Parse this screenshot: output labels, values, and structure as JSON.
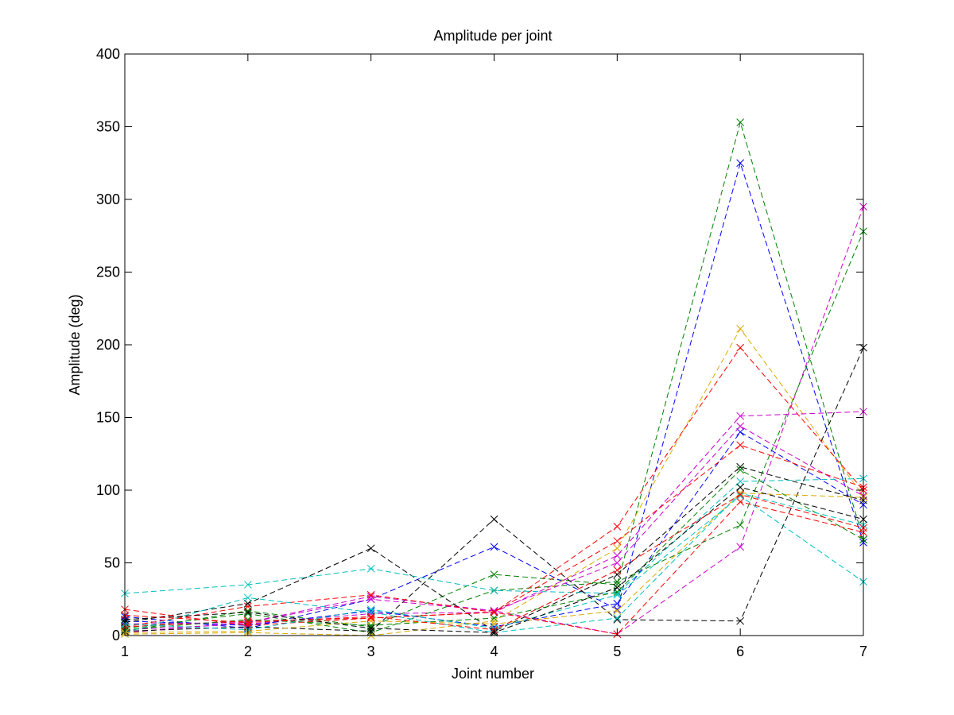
{
  "chart_data": {
    "type": "line",
    "title": "Amplitude per joint",
    "xlabel": "Joint number",
    "ylabel": "Amplitude (deg)",
    "x": [
      1,
      2,
      3,
      4,
      5,
      6,
      7
    ],
    "xlim": [
      1,
      7
    ],
    "ylim": [
      0,
      400
    ],
    "xticks": [
      "1",
      "2",
      "3",
      "4",
      "5",
      "6",
      "7"
    ],
    "yticks": [
      "0",
      "50",
      "100",
      "150",
      "200",
      "250",
      "300",
      "350",
      "400"
    ],
    "grid": false,
    "legend": "none",
    "line_style": "dashed",
    "marker": "x",
    "series": [
      {
        "color": "#008000",
        "values": [
          3,
          17,
          6,
          42,
          35,
          353,
          66
        ]
      },
      {
        "color": "#0000ff",
        "values": [
          13,
          5,
          25,
          61,
          18,
          325,
          64
        ]
      },
      {
        "color": "#cc00cc",
        "values": [
          2,
          9,
          25,
          17,
          1,
          61,
          295
        ]
      },
      {
        "color": "#008000",
        "values": [
          5,
          15,
          2,
          31,
          37,
          76,
          278
        ]
      },
      {
        "color": "#ddaa00",
        "values": [
          1,
          2,
          0,
          10,
          60,
          211,
          96
        ]
      },
      {
        "color": "#ff0000",
        "values": [
          6,
          10,
          12,
          16,
          75,
          198,
          100
        ]
      },
      {
        "color": "#000000",
        "values": [
          3,
          6,
          3,
          80,
          11,
          10,
          198
        ]
      },
      {
        "color": "#cc00cc",
        "values": [
          4,
          8,
          15,
          16,
          55,
          151,
          154
        ]
      },
      {
        "color": "#0000ff",
        "values": [
          10,
          7,
          17,
          6,
          22,
          140,
          90
        ]
      },
      {
        "color": "#cc00cc",
        "values": [
          8,
          9,
          27,
          17,
          50,
          144,
          96
        ]
      },
      {
        "color": "#ff0000",
        "values": [
          6,
          20,
          28,
          16,
          65,
          131,
          102
        ]
      },
      {
        "color": "#000000",
        "values": [
          9,
          22,
          60,
          3,
          42,
          116,
          93
        ]
      },
      {
        "color": "#00bfbf",
        "values": [
          29,
          35,
          46,
          31,
          29,
          106,
          108
        ]
      },
      {
        "color": "#008000",
        "values": [
          4,
          11,
          7,
          12,
          30,
          114,
          66
        ]
      },
      {
        "color": "#00bfbf",
        "values": [
          2,
          26,
          16,
          2,
          12,
          98,
          76
        ]
      },
      {
        "color": "#ddaa00",
        "values": [
          2,
          3,
          10,
          8,
          17,
          98,
          95
        ]
      },
      {
        "color": "#ff0000",
        "values": [
          18,
          7,
          12,
          16,
          1,
          92,
          71
        ]
      },
      {
        "color": "#00bfbf",
        "values": [
          8,
          4,
          18,
          5,
          28,
          96,
          37
        ]
      },
      {
        "color": "#000000",
        "values": [
          11,
          16,
          5,
          2,
          33,
          102,
          80
        ]
      },
      {
        "color": "#ff0000",
        "values": [
          14,
          9,
          13,
          4,
          45,
          97,
          74
        ]
      }
    ]
  }
}
